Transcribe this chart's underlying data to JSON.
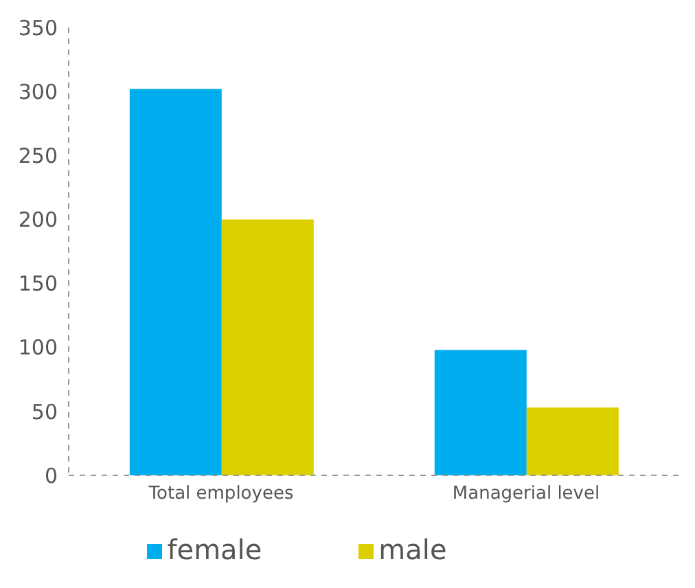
{
  "chart_data": {
    "type": "bar",
    "categories": [
      "Total employees",
      "Managerial level"
    ],
    "series": [
      {
        "name": "female",
        "color": "#00aeef",
        "values": [
          302,
          98
        ]
      },
      {
        "name": "male",
        "color": "#dccf00",
        "values": [
          200,
          53
        ]
      }
    ],
    "ylim": [
      0,
      350
    ],
    "yticks": [
      0,
      50,
      100,
      150,
      200,
      250,
      300,
      350
    ],
    "grid": false,
    "legend": "bottom"
  }
}
